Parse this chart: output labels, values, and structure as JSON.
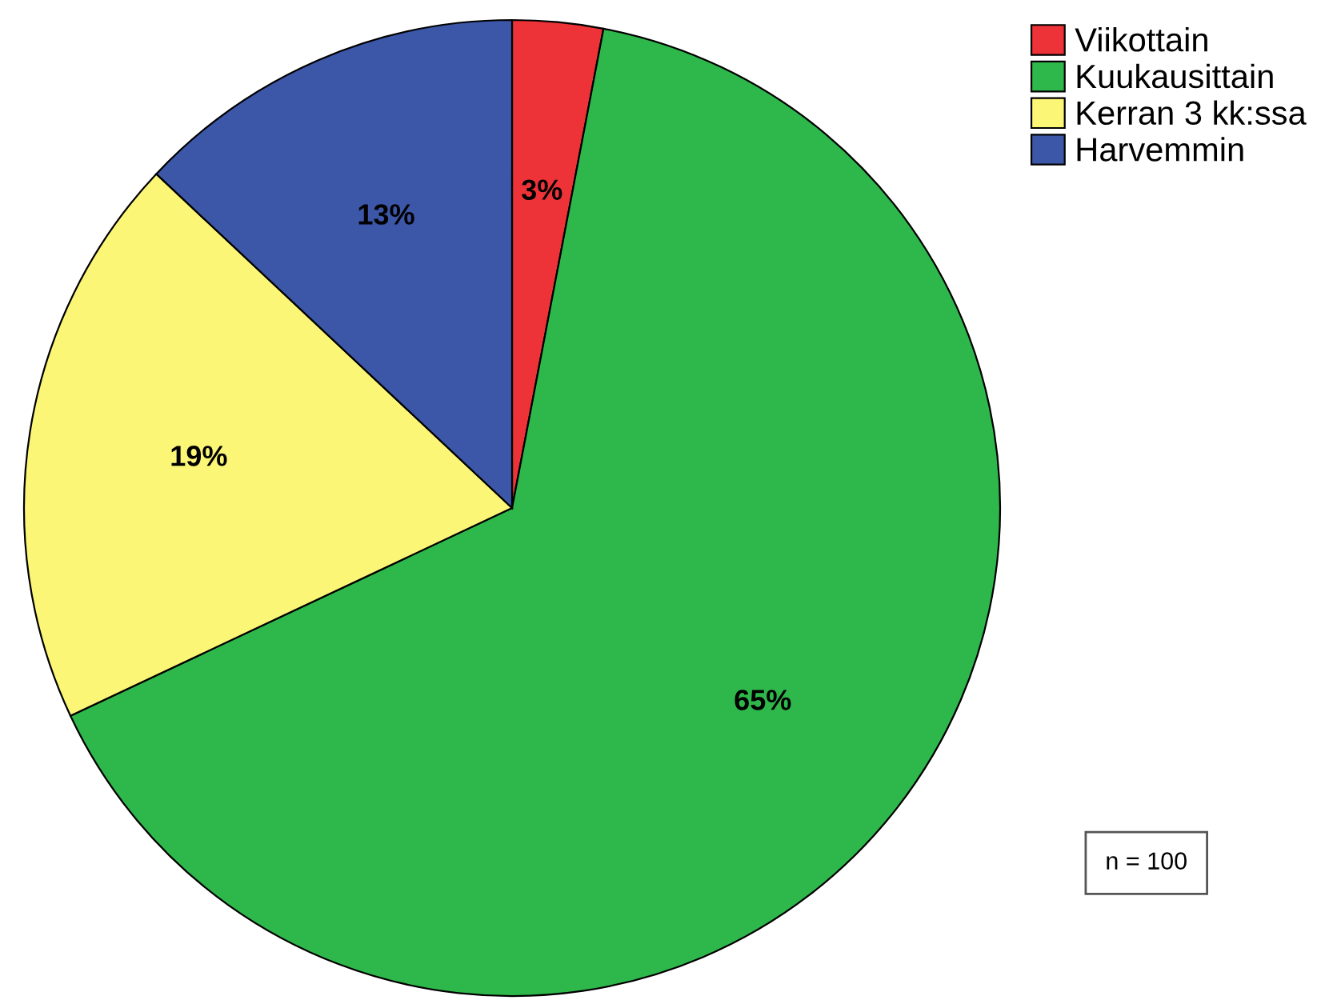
{
  "chart_data": {
    "type": "pie",
    "categories": [
      "Viikottain",
      "Kuukausittain",
      "Kerran 3 kk:ssa",
      "Harvemmin"
    ],
    "values": [
      3,
      65,
      19,
      13
    ],
    "colors": [
      "#ee3338",
      "#2eb84b",
      "#fbf676",
      "#3c56a8"
    ],
    "value_labels": [
      "3%",
      "65%",
      "19%",
      "13%"
    ],
    "legend": "top right",
    "annotations": [
      "n = 100"
    ]
  }
}
